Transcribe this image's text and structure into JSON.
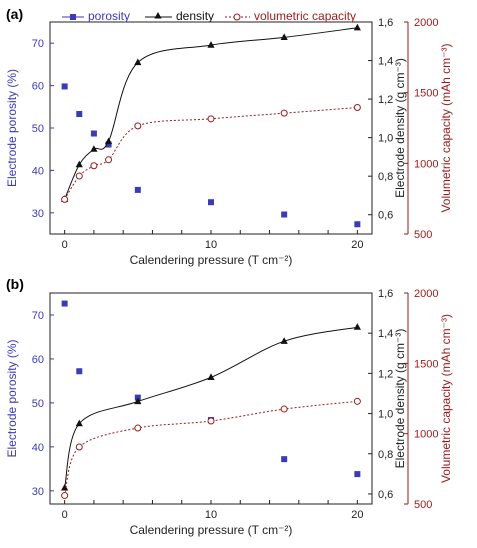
{
  "colors": {
    "porosity": "#3b3bb5",
    "density": "#111111",
    "capacity": "#9a1a1a",
    "axis": "#222222"
  },
  "legend": {
    "porosity": "porosity",
    "density": "density",
    "capacity": "volumetric capacity"
  },
  "chart_data": [
    {
      "panel": "(a)",
      "type": "line",
      "x": [
        0,
        1,
        2,
        3,
        5,
        10,
        15,
        20
      ],
      "xlabel": "Calendering pressure (T cm⁻²)",
      "xlim": [
        -1,
        21
      ],
      "xticks": [
        "0",
        "2",
        "4",
        "6",
        "8",
        "10",
        "12",
        "14",
        "16",
        "18",
        "20"
      ],
      "legend_placement": "top",
      "series": [
        {
          "key": "porosity",
          "name": "porosity",
          "axis": "left",
          "marker": "square",
          "line": "none",
          "values": [
            59.8,
            53.3,
            48.7,
            46.1,
            35.4,
            32.5,
            29.6,
            27.3
          ]
        },
        {
          "key": "density",
          "name": "density",
          "axis": "right1",
          "marker": "triangle",
          "line": "solid",
          "values": [
            0.68,
            0.86,
            0.94,
            0.98,
            1.39,
            1.48,
            1.52,
            1.57
          ]
        },
        {
          "key": "capacity",
          "name": "volumetric capacity",
          "axis": "right2",
          "marker": "circle-open",
          "line": "dotted",
          "values": [
            745,
            910,
            983,
            1025,
            1265,
            1315,
            1355,
            1395
          ]
        }
      ],
      "axes": {
        "left": {
          "label": "Electrode porosity (%)",
          "min": 25,
          "max": 75,
          "ticks": [
            30,
            40,
            50,
            60,
            70
          ],
          "tick_labels": [
            "30",
            "40",
            "50",
            "60",
            "70"
          ]
        },
        "right1": {
          "label": "Electrode density (g cm⁻³)",
          "min": 0.5,
          "max": 1.6,
          "ticks": [
            0.6,
            0.8,
            1.0,
            1.2,
            1.4,
            1.6
          ],
          "tick_labels": [
            "0,6",
            "0,8",
            "1,0",
            "1,2",
            "1,4",
            "1,6"
          ]
        },
        "right2": {
          "label": "Volumetric capacity (mAh cm⁻³)",
          "min": 500,
          "max": 2000,
          "ticks": [
            500,
            1000,
            1500,
            2000
          ],
          "tick_labels": [
            "500",
            "1000",
            "1500",
            "2000"
          ]
        }
      }
    },
    {
      "panel": "(b)",
      "type": "line",
      "x": [
        0,
        1,
        5,
        10,
        15,
        20
      ],
      "xlabel": "Calendering pressure (T cm⁻²)",
      "xlim": [
        -1,
        21
      ],
      "xticks": [
        "0",
        "2",
        "4",
        "6",
        "8",
        "10",
        "12",
        "14",
        "16",
        "18",
        "20"
      ],
      "series": [
        {
          "key": "porosity",
          "name": "porosity",
          "axis": "left",
          "marker": "square",
          "line": "none",
          "values": [
            72.6,
            57.2,
            51.2,
            46.1,
            37.2,
            33.8
          ]
        },
        {
          "key": "density",
          "name": "density",
          "axis": "right1",
          "marker": "triangle",
          "line": "solid",
          "values": [
            0.63,
            0.95,
            1.06,
            1.18,
            1.36,
            1.43
          ]
        },
        {
          "key": "capacity",
          "name": "volumetric capacity",
          "axis": "right2",
          "marker": "circle-open",
          "line": "dotted",
          "values": [
            560,
            905,
            1040,
            1090,
            1175,
            1230
          ]
        }
      ],
      "axes": {
        "left": {
          "label": "Electrode porosity (%)",
          "min": 27,
          "max": 75,
          "ticks": [
            30,
            40,
            50,
            60,
            70
          ],
          "tick_labels": [
            "30",
            "40",
            "50",
            "60",
            "70"
          ]
        },
        "right1": {
          "label": "Electrode density (g cm⁻³)",
          "min": 0.55,
          "max": 1.6,
          "ticks": [
            0.6,
            0.8,
            1.0,
            1.2,
            1.4,
            1.6
          ],
          "tick_labels": [
            "0,6",
            "0,8",
            "1,0",
            "1,2",
            "1,4",
            "1,6"
          ]
        },
        "right2": {
          "label": "Volumetric capacity (mAh cm⁻³)",
          "min": 500,
          "max": 2000,
          "ticks": [
            500,
            1000,
            1500,
            2000
          ],
          "tick_labels": [
            "500",
            "1000",
            "1500",
            "2000"
          ]
        }
      }
    }
  ]
}
